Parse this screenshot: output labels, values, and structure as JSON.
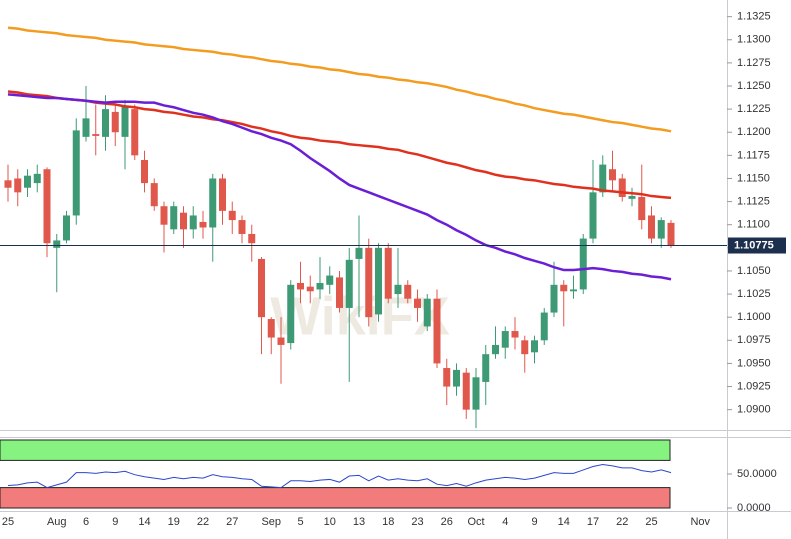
{
  "chart_data": [
    {
      "type": "candlestick",
      "watermark": "WikiFX",
      "categories": [
        "25",
        null,
        null,
        null,
        null,
        "Aug",
        null,
        null,
        "6",
        null,
        null,
        "9",
        null,
        null,
        "14",
        null,
        null,
        "19",
        null,
        null,
        "22",
        null,
        null,
        "27",
        null,
        null,
        null,
        "Sep",
        null,
        null,
        "5",
        null,
        null,
        "10",
        null,
        null,
        "13",
        null,
        null,
        "18",
        null,
        null,
        "23",
        null,
        null,
        "26",
        null,
        null,
        "Oct",
        null,
        null,
        "4",
        null,
        null,
        "9",
        null,
        null,
        "14",
        null,
        null,
        "17",
        null,
        null,
        "22",
        null,
        null,
        "25",
        null,
        null,
        null,
        null,
        "Nov"
      ],
      "open": [
        1.1148,
        1.115,
        1.114,
        1.1145,
        1.116,
        1.1075,
        1.1083,
        1.111,
        1.1195,
        1.1198,
        1.1195,
        1.1222,
        1.1195,
        1.1225,
        1.117,
        1.1145,
        1.112,
        1.1095,
        1.1113,
        1.1095,
        1.1103,
        1.1097,
        1.115,
        1.1115,
        1.1105,
        1.109,
        1.1063,
        1.0998,
        1.0978,
        1.0972,
        1.1037,
        1.1033,
        1.103,
        1.1035,
        1.1043,
        1.101,
        1.1063,
        1.1075,
        1.1003,
        1.1075,
        1.1025,
        1.1035,
        1.102,
        1.099,
        1.102,
        1.0945,
        1.0925,
        1.094,
        1.09,
        1.093,
        1.096,
        1.0967,
        1.0985,
        1.0975,
        1.0962,
        1.0975,
        1.1005,
        1.1035,
        1.1028,
        1.103,
        1.1085,
        1.1135,
        1.116,
        1.115,
        1.1128,
        1.113,
        1.111,
        1.1085,
        1.1102,
        null,
        null,
        null
      ],
      "high": [
        1.1165,
        1.116,
        1.116,
        1.1165,
        1.1162,
        1.109,
        1.1115,
        1.1215,
        1.125,
        1.123,
        1.124,
        1.1232,
        1.1235,
        1.123,
        1.118,
        1.115,
        1.1125,
        1.1125,
        1.112,
        1.112,
        1.1115,
        1.1155,
        1.1155,
        1.1125,
        1.111,
        1.11,
        1.1065,
        1.1,
        1.1,
        1.104,
        1.106,
        1.1045,
        1.1065,
        1.1055,
        1.105,
        1.1075,
        1.111,
        1.1085,
        1.108,
        1.108,
        1.1075,
        1.104,
        1.103,
        1.1025,
        1.103,
        1.0955,
        1.095,
        1.0945,
        1.0945,
        1.097,
        1.099,
        1.099,
        1.1,
        1.098,
        1.098,
        1.101,
        1.106,
        1.104,
        1.1045,
        1.109,
        1.117,
        1.1175,
        1.118,
        1.1155,
        1.114,
        1.1165,
        1.112,
        1.1108,
        1.1105,
        null,
        null,
        null
      ],
      "low": [
        1.1125,
        1.112,
        1.113,
        1.1135,
        1.1065,
        1.1027,
        1.108,
        1.11,
        1.119,
        1.1175,
        1.118,
        1.1185,
        1.116,
        1.117,
        1.1135,
        1.1115,
        1.107,
        1.109,
        1.1075,
        1.1085,
        1.1085,
        1.106,
        1.11,
        1.109,
        1.108,
        1.106,
        1.096,
        1.096,
        1.0928,
        1.0965,
        1.1015,
        1.1015,
        1.102,
        1.1025,
        1.1005,
        1.093,
        1.1,
        1.099,
        1.0995,
        1.1015,
        1.101,
        1.1015,
        1.0995,
        1.0985,
        1.0945,
        1.0905,
        1.0915,
        1.089,
        1.088,
        1.0905,
        1.0955,
        1.0955,
        1.0965,
        1.094,
        1.095,
        1.097,
        1.1,
        1.099,
        1.102,
        1.1025,
        1.108,
        1.113,
        1.1135,
        1.1125,
        1.112,
        1.1095,
        1.108,
        1.1075,
        1.1075,
        null,
        null,
        null
      ],
      "close": [
        1.114,
        1.1135,
        1.1153,
        1.1155,
        1.108,
        1.1083,
        1.111,
        1.1202,
        1.1215,
        1.1196,
        1.1225,
        1.12,
        1.1228,
        1.1175,
        1.1145,
        1.112,
        1.11,
        1.112,
        1.1095,
        1.111,
        1.1097,
        1.115,
        1.1115,
        1.1105,
        1.109,
        1.108,
        1.1,
        1.0978,
        1.097,
        1.1035,
        1.103,
        1.1028,
        1.1037,
        1.1045,
        1.101,
        1.1062,
        1.1075,
        1.1,
        1.1075,
        1.102,
        1.1035,
        1.102,
        1.101,
        1.102,
        1.095,
        1.0925,
        1.0943,
        1.09,
        1.0935,
        1.096,
        1.097,
        1.0985,
        1.0978,
        1.096,
        1.0975,
        1.1005,
        1.1035,
        1.1028,
        1.103,
        1.1085,
        1.1135,
        1.1165,
        1.1148,
        1.113,
        1.1131,
        1.1105,
        1.1085,
        1.1105,
        1.10775,
        null,
        null,
        null
      ],
      "up_color": "#3d9a75",
      "down_color": "#e0574c",
      "series": [
        {
          "color": "#f39c1f",
          "values": [
            1.1313,
            1.1312,
            1.131,
            1.1309,
            1.1308,
            1.1307,
            1.1305,
            1.1304,
            1.1303,
            1.1302,
            1.13,
            1.1299,
            1.1298,
            1.1297,
            1.1295,
            1.1294,
            1.1293,
            1.1292,
            1.129,
            1.1289,
            1.1288,
            1.1287,
            1.1285,
            1.1284,
            1.1282,
            1.1281,
            1.1279,
            1.1277,
            1.1276,
            1.1274,
            1.1273,
            1.1271,
            1.127,
            1.1268,
            1.1267,
            1.1265,
            1.1263,
            1.1262,
            1.126,
            1.1259,
            1.1257,
            1.1256,
            1.1254,
            1.1253,
            1.1251,
            1.1249,
            1.1246,
            1.1244,
            1.1241,
            1.1239,
            1.1236,
            1.1234,
            1.1231,
            1.1229,
            1.1226,
            1.1224,
            1.1222,
            1.122,
            1.1219,
            1.1217,
            1.1215,
            1.1213,
            1.1211,
            1.121,
            1.1208,
            1.1206,
            1.1204,
            1.1203,
            1.1201,
            null,
            null,
            null
          ]
        },
        {
          "color": "#e0301e",
          "values": [
            1.1244,
            1.1243,
            1.1241,
            1.124,
            1.1239,
            1.1237,
            1.1236,
            1.1235,
            1.1234,
            1.1232,
            1.1231,
            1.123,
            1.1228,
            1.1227,
            1.1225,
            1.1224,
            1.1222,
            1.1221,
            1.1219,
            1.1217,
            1.1216,
            1.1214,
            1.1213,
            1.1211,
            1.1209,
            1.1206,
            1.1204,
            1.1201,
            1.1199,
            1.1196,
            1.1194,
            1.1193,
            1.1191,
            1.119,
            1.1189,
            1.1187,
            1.1186,
            1.1185,
            1.1184,
            1.1182,
            1.1181,
            1.1178,
            1.1176,
            1.1173,
            1.117,
            1.1167,
            1.1165,
            1.1162,
            1.1159,
            1.1157,
            1.1154,
            1.1152,
            1.1151,
            1.1149,
            1.1148,
            1.1146,
            1.1144,
            1.1143,
            1.1141,
            1.114,
            1.1139,
            1.1137,
            1.1136,
            1.1135,
            1.1134,
            1.1133,
            1.1131,
            1.113,
            1.1129,
            null,
            null,
            null
          ]
        },
        {
          "color": "#6a1fd6",
          "values": [
            1.1241,
            1.124,
            1.1239,
            1.1238,
            1.1237,
            1.1237,
            1.1236,
            1.1235,
            1.1234,
            1.1233,
            1.1232,
            1.1233,
            1.1233,
            1.1233,
            1.1232,
            1.1232,
            1.1229,
            1.1227,
            1.1224,
            1.1221,
            1.1219,
            1.1216,
            1.1212,
            1.1209,
            1.1205,
            1.1201,
            1.1198,
            1.1194,
            1.1191,
            1.1187,
            1.118,
            1.1172,
            1.1165,
            1.1158,
            1.115,
            1.1143,
            1.1139,
            1.1135,
            1.1131,
            1.1127,
            1.1123,
            1.1119,
            1.1115,
            1.1111,
            1.1105,
            1.11,
            1.1094,
            1.1089,
            1.1083,
            1.1078,
            1.1075,
            1.1071,
            1.1068,
            1.1064,
            1.1061,
            1.1058,
            1.1054,
            1.1051,
            1.1051,
            1.1052,
            1.1053,
            1.1052,
            1.105,
            1.1049,
            1.1047,
            1.1046,
            1.1044,
            1.1043,
            1.1041,
            null,
            null,
            null
          ]
        }
      ],
      "last_price": 1.10775,
      "last_price_color": "#1c2f4d",
      "ylim": [
        1.0878,
        1.1343
      ],
      "yticks": [
        {
          "value": 1.09,
          "label": "1.0900"
        },
        1.0925,
        {
          "value": 1.095,
          "label": "1.0950"
        },
        1.0975,
        {
          "value": 1.1,
          "label": "1.1000"
        },
        1.1025,
        {
          "value": 1.105,
          "label": "1.1050"
        },
        1.1075,
        {
          "value": 1.11,
          "label": "1.1100"
        },
        1.1125,
        {
          "value": 1.115,
          "label": "1.1150"
        },
        1.1175,
        {
          "value": 1.12,
          "label": "1.1200"
        },
        1.1225,
        {
          "value": 1.125,
          "label": "1.1250"
        },
        1.1275,
        {
          "value": 1.13,
          "label": "1.1300"
        },
        1.1325
      ]
    },
    {
      "type": "line",
      "series": [
        {
          "color": "#2b46cf",
          "values": [
            33,
            34,
            37,
            38,
            30,
            34,
            38,
            52,
            52,
            51,
            53,
            52,
            54,
            49,
            46,
            44,
            42,
            45,
            43,
            45,
            44,
            49,
            46,
            45,
            43,
            42,
            32,
            31,
            30,
            40,
            40,
            39,
            41,
            42,
            38,
            47,
            48,
            40,
            47,
            41,
            43,
            41,
            40,
            43,
            35,
            33,
            36,
            32,
            37,
            41,
            43,
            45,
            44,
            42,
            44,
            48,
            52,
            51,
            51,
            56,
            61,
            64,
            62,
            59,
            59,
            55,
            53,
            56,
            52,
            null,
            null,
            null
          ]
        }
      ],
      "bands": [
        {
          "range": [
            70,
            100
          ],
          "color": "#86f27f"
        },
        {
          "range": [
            0,
            30
          ],
          "color": "#f27c7c"
        }
      ],
      "ylim": [
        0,
        100
      ],
      "yticks": [
        {
          "value": 0,
          "label": "0.0000"
        },
        {
          "value": 50,
          "label": "50.0000"
        }
      ]
    }
  ]
}
